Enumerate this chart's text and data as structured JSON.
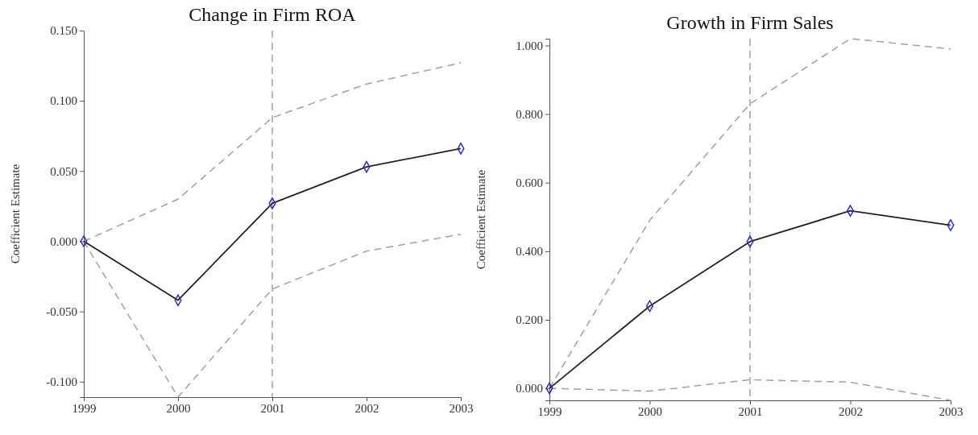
{
  "chart_data": [
    {
      "type": "line",
      "title": "Change in Firm ROA",
      "ylabel": "Coefficient Estimate",
      "x": [
        1999,
        2000,
        2001,
        2002,
        2003
      ],
      "xlim": [
        1999,
        2003
      ],
      "xticks": [
        1999,
        2000,
        2001,
        2002,
        2003
      ],
      "ylim": [
        -0.111,
        0.15
      ],
      "yticks": [
        {
          "value": -0.1,
          "label": "-0.100"
        },
        {
          "value": -0.05,
          "label": "-0.050"
        },
        {
          "value": 0,
          "label": "0.000"
        },
        {
          "value": 0.05,
          "label": "0.050"
        },
        {
          "value": 0.1,
          "label": "0.100"
        },
        {
          "value": 0.15,
          "label": "0.150"
        }
      ],
      "grid": false,
      "series": [
        {
          "color": "#a0a0a0",
          "line_style": "dashed",
          "marker": "none",
          "values": [
            0,
            0.03,
            0.088,
            0.112,
            0.127
          ]
        },
        {
          "color": "#a0a0a0",
          "line_style": "dashed",
          "marker": "none",
          "values": [
            0,
            -0.111,
            -0.034,
            -0.007,
            0.005
          ]
        },
        {
          "color": "#222222",
          "line_style": "solid",
          "marker": "diamond",
          "values": [
            0,
            -0.042,
            0.027,
            0.053,
            0.066
          ]
        }
      ],
      "ref_lines": [
        {
          "axis": "x",
          "value": 2001,
          "line_style": "dashed",
          "color": "#707070"
        }
      ]
    },
    {
      "type": "line",
      "title": "Growth in Firm Sales",
      "ylabel": "Coefficient Estimate",
      "x": [
        1999,
        2000,
        2001,
        2002,
        2003
      ],
      "xlim": [
        1999,
        2003
      ],
      "xticks": [
        1999,
        2000,
        2001,
        2002,
        2003
      ],
      "ylim": [
        -0.035,
        1.02
      ],
      "yticks": [
        {
          "value": 0,
          "label": "0.000"
        },
        {
          "value": 0.2,
          "label": "0.200"
        },
        {
          "value": 0.4,
          "label": "0.400"
        },
        {
          "value": 0.6,
          "label": "0.600"
        },
        {
          "value": 0.8,
          "label": "0.800"
        },
        {
          "value": 1,
          "label": "1.000"
        }
      ],
      "grid": false,
      "series": [
        {
          "color": "#a0a0a0",
          "line_style": "dashed",
          "marker": "none",
          "values": [
            0,
            0.49,
            0.83,
            1.02,
            0.99
          ]
        },
        {
          "color": "#a0a0a0",
          "line_style": "dashed",
          "marker": "none",
          "values": [
            0,
            -0.008,
            0.025,
            0.018,
            -0.035
          ]
        },
        {
          "color": "#222222",
          "line_style": "solid",
          "marker": "diamond",
          "values": [
            0,
            0.24,
            0.428,
            0.518,
            0.476
          ]
        }
      ],
      "ref_lines": [
        {
          "axis": "x",
          "value": 2001,
          "line_style": "dashed",
          "color": "#707070"
        }
      ]
    }
  ]
}
